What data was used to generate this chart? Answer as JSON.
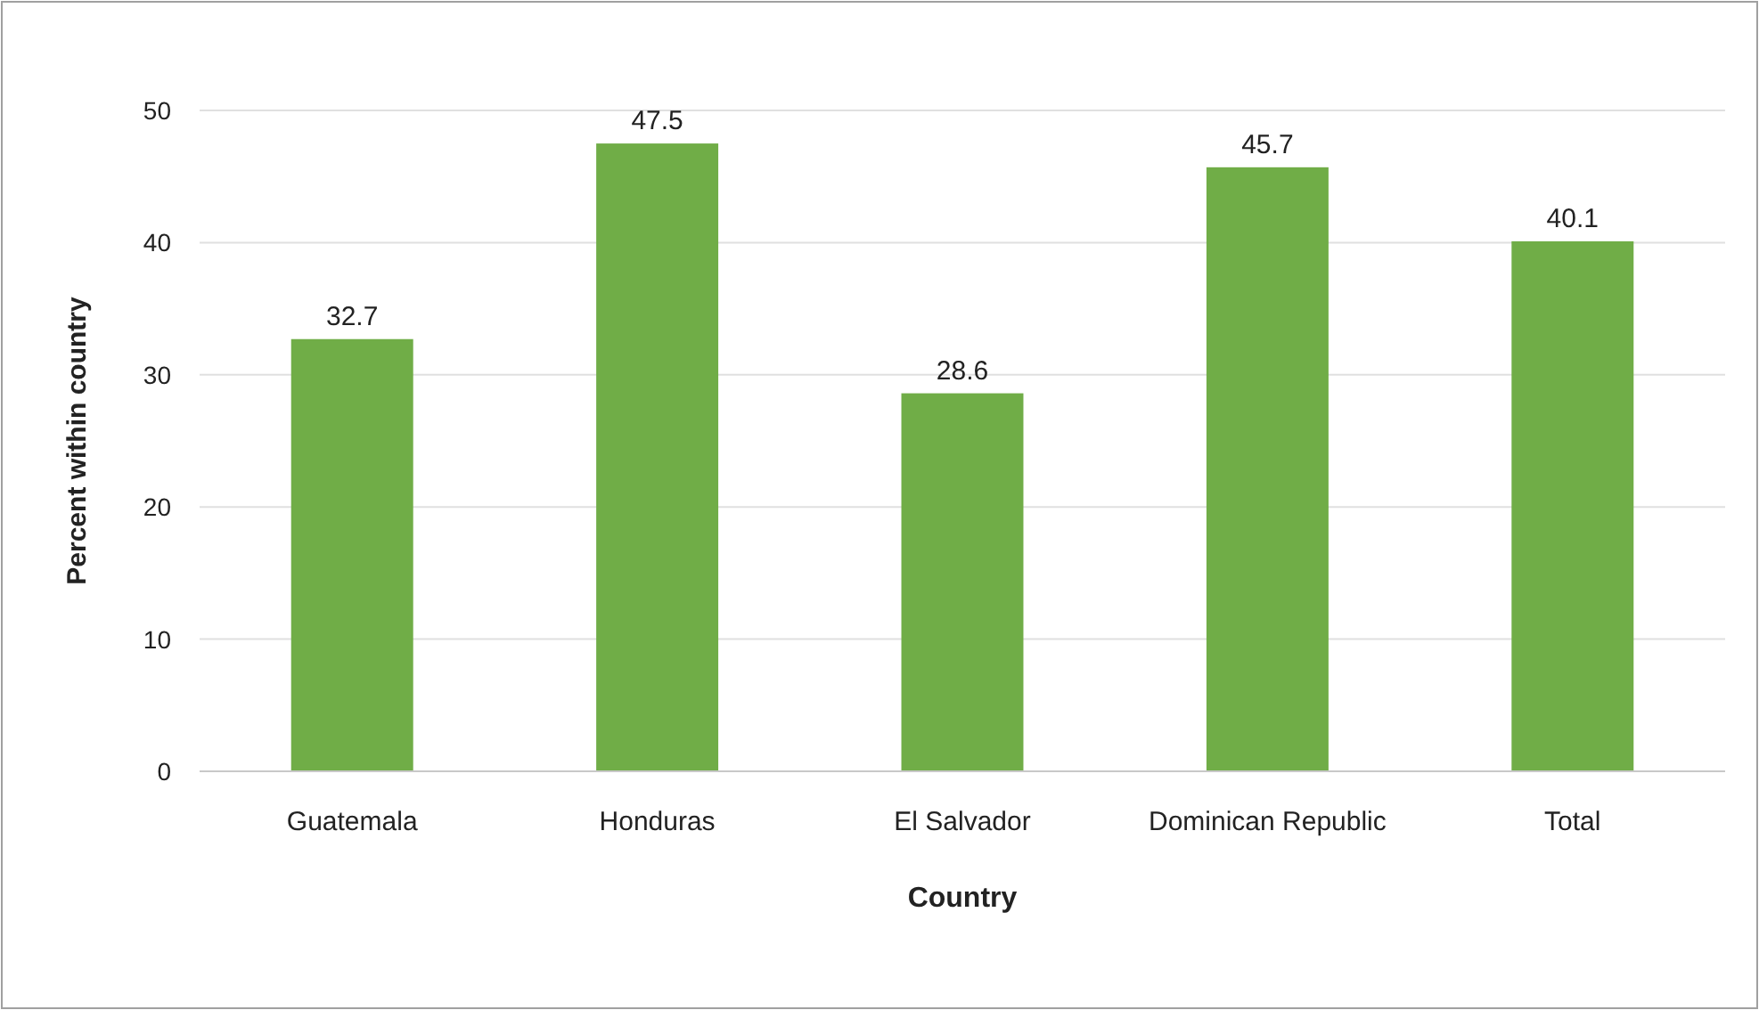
{
  "chart_data": {
    "type": "bar",
    "xlabel": "Country",
    "ylabel": "Percent within country",
    "categories": [
      "Guatemala",
      "Honduras",
      "El Salvador",
      "Dominican Republic",
      "Total"
    ],
    "values": [
      32.7,
      47.5,
      28.6,
      45.7,
      40.1
    ],
    "color": "#70ad47",
    "ylim": [
      0,
      50
    ],
    "yticks": [
      0,
      10,
      20,
      30,
      40,
      50
    ],
    "grid": "y",
    "data_labels": true
  }
}
